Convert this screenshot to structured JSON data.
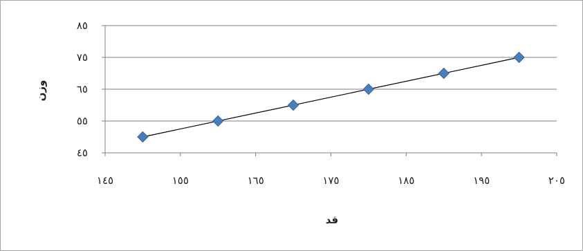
{
  "chart_data": {
    "type": "scatter",
    "xlabel": "قد",
    "ylabel": "وزن",
    "xlim": [
      145,
      205
    ],
    "ylim": [
      45,
      85
    ],
    "x_ticks": [
      145,
      155,
      165,
      175,
      185,
      195,
      205
    ],
    "y_ticks": [
      45,
      55,
      65,
      75,
      85
    ],
    "x_tick_labels": [
      "١٤٥",
      "١٥٥",
      "١٦٥",
      "١٧٥",
      "١٨٥",
      "١٩٥",
      "٢٠٥"
    ],
    "y_tick_labels": [
      "٤٥",
      "٥٥",
      "٦٥",
      "٧٥",
      "٨٥"
    ],
    "grid": true,
    "trendline": "linear",
    "series": [
      {
        "marker": "diamond",
        "x": [
          150,
          160,
          170,
          180,
          190,
          200
        ],
        "y": [
          50,
          55,
          60,
          65,
          70,
          75
        ]
      }
    ],
    "colors": {
      "marker": "#4a7ebb",
      "marker_edge": "#3b6499",
      "line": "#000000",
      "grid": "#7f7f7f"
    }
  }
}
